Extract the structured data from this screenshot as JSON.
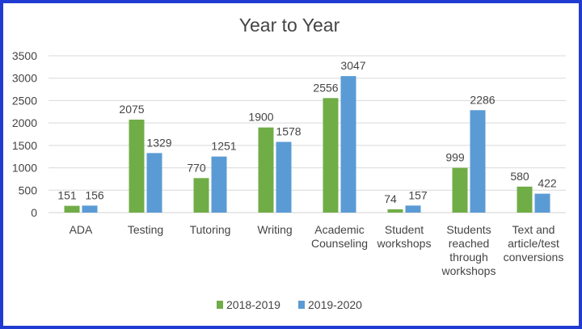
{
  "chart_data": {
    "type": "bar",
    "title": "Year to Year",
    "xlabel": "",
    "ylabel": "",
    "ylim": [
      0,
      3500
    ],
    "y_ticks": [
      0,
      500,
      1000,
      1500,
      2000,
      2500,
      3000,
      3500
    ],
    "grid": true,
    "legend_position": "bottom",
    "categories": [
      [
        "ADA"
      ],
      [
        "Testing"
      ],
      [
        "Tutoring"
      ],
      [
        "Writing"
      ],
      [
        "Academic",
        "Counseling"
      ],
      [
        "Student",
        "workshops"
      ],
      [
        "Students",
        "reached",
        "through",
        "workshops"
      ],
      [
        "Text and",
        "article/test",
        "conversions"
      ]
    ],
    "series": [
      {
        "name": "2018-2019",
        "color": "#70ad47",
        "values": [
          151,
          2075,
          770,
          1900,
          2556,
          74,
          999,
          580
        ]
      },
      {
        "name": "2019-2020",
        "color": "#5b9bd5",
        "values": [
          156,
          1329,
          1251,
          1578,
          3047,
          157,
          2286,
          422
        ]
      }
    ]
  }
}
